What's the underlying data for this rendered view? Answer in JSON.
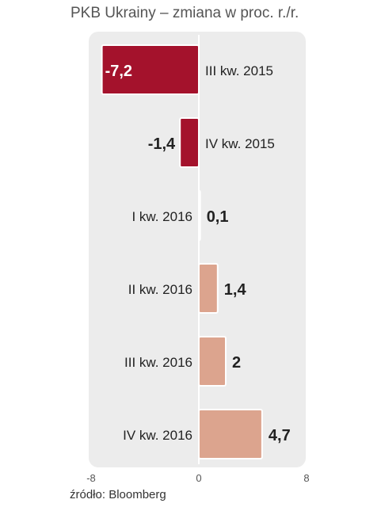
{
  "title": "PKB Ukrainy – zmiana w proc. r./r.",
  "source": "źródło: Bloomberg",
  "chart_data": {
    "type": "bar",
    "orientation": "horizontal",
    "title": "PKB Ukrainy – zmiana w proc. r./r.",
    "xlabel": "",
    "ylabel": "",
    "xlim": [
      -8,
      8
    ],
    "x_ticks": [
      "-8",
      "0",
      "8"
    ],
    "grid": false,
    "legend": "none",
    "categories": [
      "III kw. 2015",
      "IV kw. 2015",
      "I kw. 2016",
      "II kw. 2016",
      "III kw. 2016",
      "IV kw. 2016"
    ],
    "values": [
      -7.2,
      -1.4,
      0.1,
      1.4,
      2,
      4.7
    ],
    "value_labels": [
      "-7,2",
      "-1,4",
      "0,1",
      "1,4",
      "2",
      "4,7"
    ],
    "colors": {
      "negative": "#a4122c",
      "positive": "#dca48e",
      "bar_border": "#ffffff"
    }
  }
}
